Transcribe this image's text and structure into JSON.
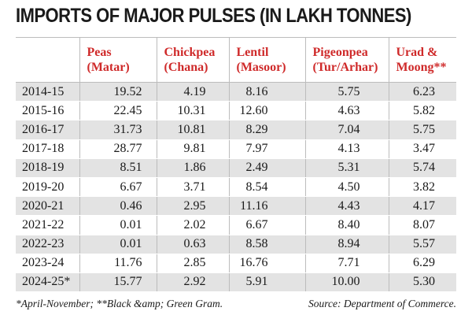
{
  "title": "IMPORTS OF MAJOR PULSES (IN LAKH TONNES)",
  "colors": {
    "header_text": "#cf2a2a",
    "stripe": "#e3e3e3",
    "rule": "#bcbcbc"
  },
  "table": {
    "columns": [
      {
        "line1": "",
        "line2": ""
      },
      {
        "line1": "Peas",
        "line2": "(Matar)"
      },
      {
        "line1": "Chickpea",
        "line2": "(Chana)"
      },
      {
        "line1": "Lentil",
        "line2": "(Masoor)"
      },
      {
        "line1": "Pigeonpea",
        "line2": "(Tur/Arhar)"
      },
      {
        "line1": "Urad &",
        "line2": "Moong**"
      }
    ],
    "rows": [
      {
        "year": "2014-15",
        "peas": "19.52",
        "chickpea": "4.19",
        "lentil": "8.16",
        "pigeonpea": "5.75",
        "urad_moong": "6.23"
      },
      {
        "year": "2015-16",
        "peas": "22.45",
        "chickpea": "10.31",
        "lentil": "12.60",
        "pigeonpea": "4.63",
        "urad_moong": "5.82"
      },
      {
        "year": "2016-17",
        "peas": "31.73",
        "chickpea": "10.81",
        "lentil": "8.29",
        "pigeonpea": "7.04",
        "urad_moong": "5.75"
      },
      {
        "year": "2017-18",
        "peas": "28.77",
        "chickpea": "9.81",
        "lentil": "7.97",
        "pigeonpea": "4.13",
        "urad_moong": "3.47"
      },
      {
        "year": "2018-19",
        "peas": "8.51",
        "chickpea": "1.86",
        "lentil": "2.49",
        "pigeonpea": "5.31",
        "urad_moong": "5.74"
      },
      {
        "year": "2019-20",
        "peas": "6.67",
        "chickpea": "3.71",
        "lentil": "8.54",
        "pigeonpea": "4.50",
        "urad_moong": "3.82"
      },
      {
        "year": "2020-21",
        "peas": "0.46",
        "chickpea": "2.95",
        "lentil": "11.16",
        "pigeonpea": "4.43",
        "urad_moong": "4.17"
      },
      {
        "year": "2021-22",
        "peas": "0.01",
        "chickpea": "2.02",
        "lentil": "6.67",
        "pigeonpea": "8.40",
        "urad_moong": "8.07"
      },
      {
        "year": "2022-23",
        "peas": "0.01",
        "chickpea": "0.63",
        "lentil": "8.58",
        "pigeonpea": "8.94",
        "urad_moong": "5.57"
      },
      {
        "year": "2023-24",
        "peas": "11.76",
        "chickpea": "2.85",
        "lentil": "16.76",
        "pigeonpea": "7.71",
        "urad_moong": "6.29"
      },
      {
        "year": "2024-25*",
        "peas": "15.77",
        "chickpea": "2.92",
        "lentil": "5.91",
        "pigeonpea": "10.00",
        "urad_moong": "5.30"
      }
    ]
  },
  "footer": {
    "note": "*April-November; **Black &amp; Green Gram.",
    "source": "Source: Department of Commerce."
  }
}
